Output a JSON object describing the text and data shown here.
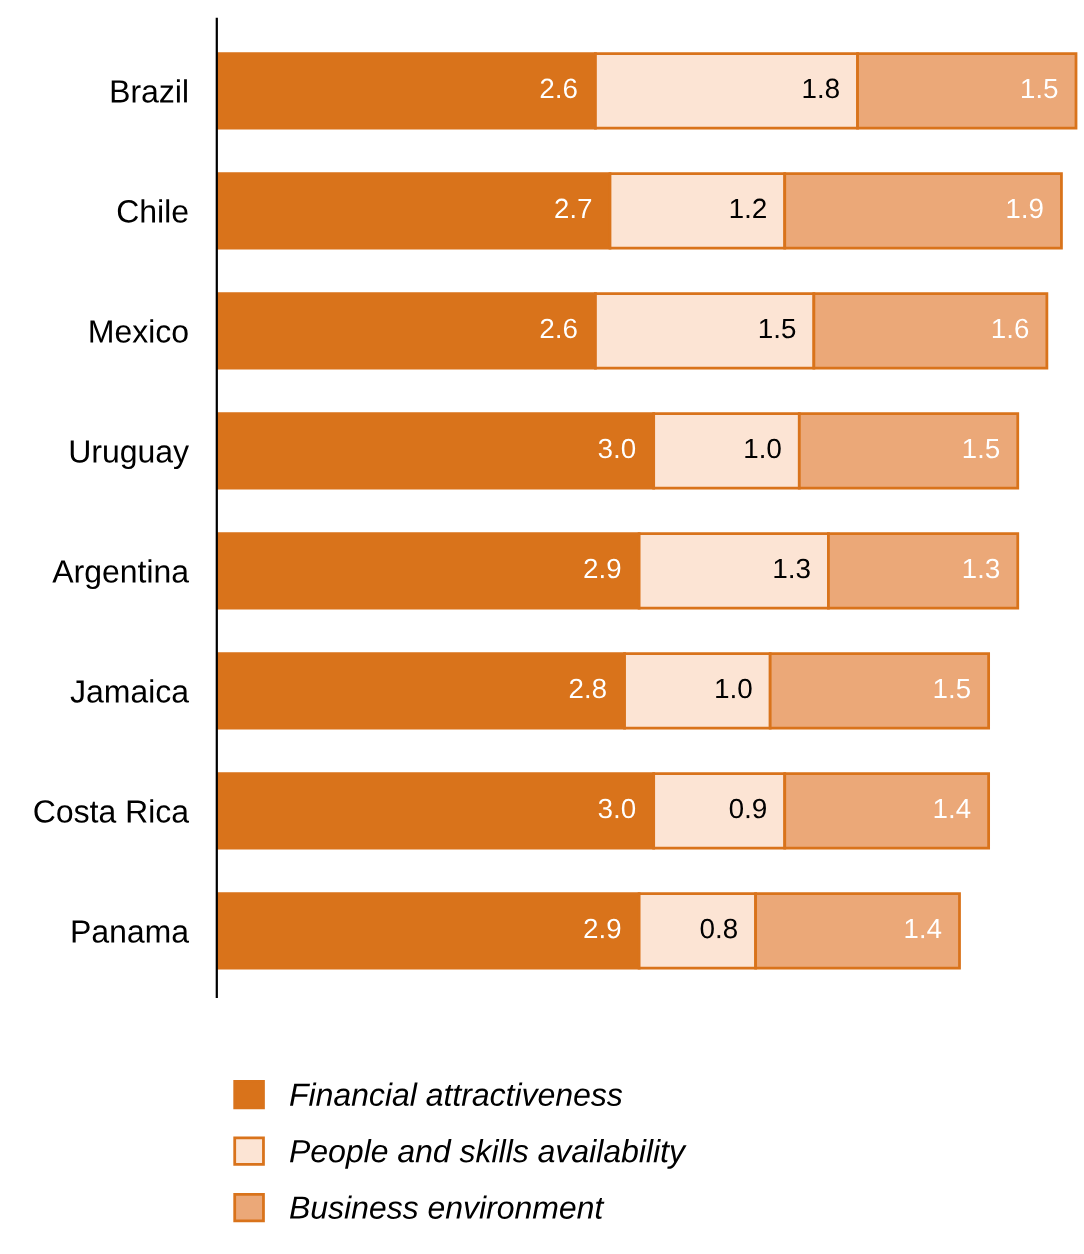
{
  "chart_data": {
    "type": "bar",
    "orientation": "horizontal",
    "stacked": true,
    "legend": "bottom",
    "grid": false,
    "tick_labels": "y",
    "categories": [
      "Brazil",
      "Chile",
      "Mexico",
      "Uruguay",
      "Argentina",
      "Jamaica",
      "Costa Rica",
      "Panama"
    ],
    "series": [
      {
        "name": "Financial attractiveness",
        "color": "#d9731b",
        "values": [
          2.6,
          2.7,
          2.6,
          3.0,
          2.9,
          2.8,
          3.0,
          2.9
        ],
        "value_labels": [
          "2.6",
          "2.7",
          "2.6",
          "3.0",
          "2.9",
          "2.8",
          "3.0",
          "2.9"
        ]
      },
      {
        "name": "People and skills availability",
        "color": "#fce4d4",
        "values": [
          1.8,
          1.2,
          1.5,
          1.0,
          1.3,
          1.0,
          0.9,
          0.8
        ],
        "value_labels": [
          "1.8",
          "1.2",
          "1.5",
          "1.0",
          "1.3",
          "1.0",
          "0.9",
          "0.8"
        ]
      },
      {
        "name": "Business environment",
        "color": "#eba878",
        "values": [
          1.5,
          1.9,
          1.6,
          1.5,
          1.3,
          1.5,
          1.4,
          1.4
        ],
        "value_labels": [
          "1.5",
          "1.9",
          "1.6",
          "1.5",
          "1.3",
          "1.5",
          "1.4",
          "1.4"
        ]
      }
    ]
  }
}
